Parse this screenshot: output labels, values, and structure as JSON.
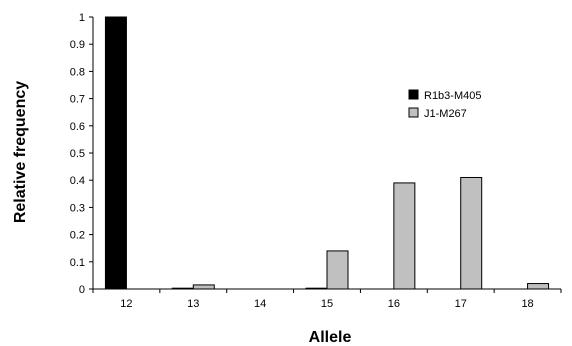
{
  "chart_data": {
    "type": "bar",
    "xlabel": "Allele",
    "ylabel": "Relative frequency",
    "categories": [
      "12",
      "13",
      "14",
      "15",
      "16",
      "17",
      "18"
    ],
    "ylim": [
      0,
      1
    ],
    "yticks": [
      "0",
      "0.1",
      "0.2",
      "0.3",
      "0.4",
      "0.5",
      "0.6",
      "0.7",
      "0.8",
      "0.9",
      "1"
    ],
    "grid": false,
    "legend_position": "right",
    "series": [
      {
        "name": "R1b3-M405",
        "color": "#000000",
        "values": [
          1.0,
          0.003,
          0,
          0.003,
          0,
          0,
          0
        ]
      },
      {
        "name": "J1-M267",
        "color": "#c0c0c0",
        "values": [
          0,
          0.015,
          0,
          0.14,
          0.39,
          0.41,
          0.02
        ]
      }
    ]
  }
}
